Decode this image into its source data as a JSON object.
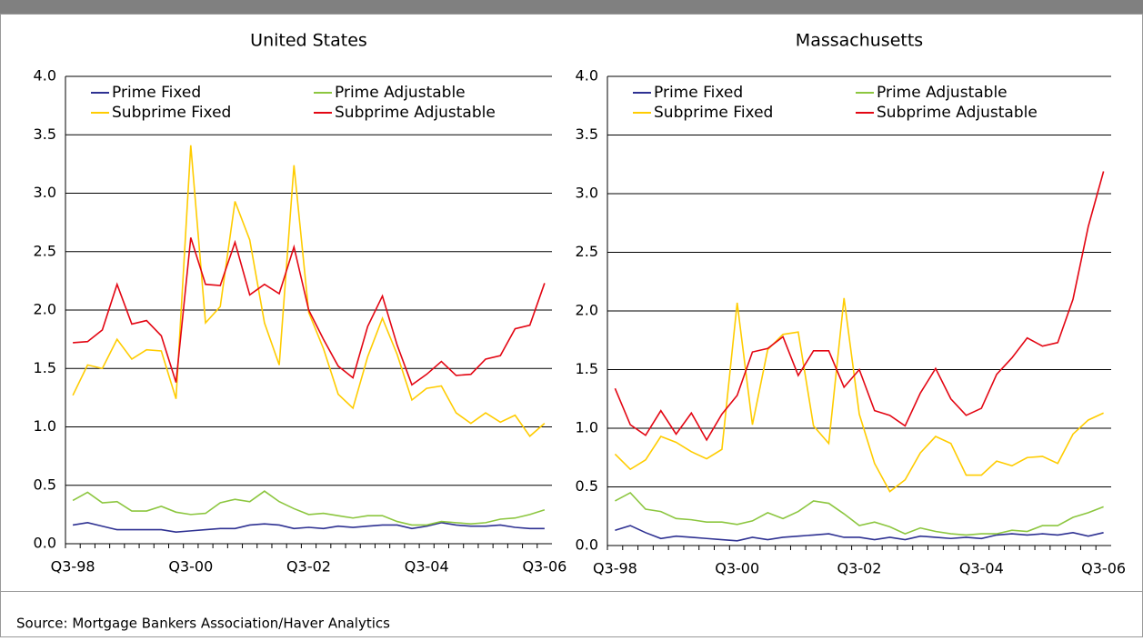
{
  "chart_data": [
    {
      "type": "line",
      "title": "United States",
      "categories": [
        "Q3-98",
        null,
        null,
        null,
        null,
        null,
        null,
        null,
        "Q3-00",
        null,
        null,
        null,
        null,
        null,
        null,
        null,
        "Q3-02",
        null,
        null,
        null,
        null,
        null,
        null,
        null,
        "Q3-04",
        null,
        null,
        null,
        null,
        null,
        null,
        null,
        "Q3-06"
      ],
      "ylim": [
        0,
        4
      ],
      "yticks": [
        {
          "value": 0,
          "label": "0.0"
        },
        0.5,
        {
          "value": 1,
          "label": "1.0"
        },
        1.5,
        {
          "value": 2,
          "label": "2.0"
        },
        2.5,
        {
          "value": 3,
          "label": "3.0"
        },
        3.5,
        {
          "value": 4,
          "label": "4.0"
        }
      ],
      "grid": true,
      "legend": "top-left",
      "series": [
        {
          "name": "Prime Fixed",
          "color": "#2e3192",
          "values": [
            0.16,
            0.18,
            0.15,
            0.12,
            0.12,
            0.12,
            0.12,
            0.1,
            0.11,
            0.12,
            0.13,
            0.13,
            0.16,
            0.17,
            0.16,
            0.13,
            0.14,
            0.13,
            0.15,
            0.14,
            0.15,
            0.16,
            0.16,
            0.13,
            0.15,
            0.18,
            0.16,
            0.15,
            0.15,
            0.16,
            0.14,
            0.13,
            0.13
          ]
        },
        {
          "name": "Prime Adjustable",
          "color": "#8cc63f",
          "values": [
            0.37,
            0.44,
            0.35,
            0.36,
            0.28,
            0.28,
            0.32,
            0.27,
            0.25,
            0.26,
            0.35,
            0.38,
            0.36,
            0.45,
            0.36,
            0.3,
            0.25,
            0.26,
            0.24,
            0.22,
            0.24,
            0.24,
            0.19,
            0.16,
            0.16,
            0.19,
            0.18,
            0.17,
            0.18,
            0.21,
            0.22,
            0.25,
            0.29
          ]
        },
        {
          "name": "Subprime Fixed",
          "color": "#ffcc00",
          "values": [
            1.27,
            1.53,
            1.5,
            1.75,
            1.58,
            1.66,
            1.65,
            1.24,
            3.41,
            1.89,
            2.03,
            2.93,
            2.6,
            1.89,
            1.53,
            3.24,
            1.98,
            1.67,
            1.28,
            1.16,
            1.6,
            1.93,
            1.62,
            1.23,
            1.33,
            1.35,
            1.12,
            1.03,
            1.12,
            1.04,
            1.1,
            0.92,
            1.03
          ]
        },
        {
          "name": "Subprime Adjustable",
          "color": "#e30613",
          "values": [
            1.72,
            1.73,
            1.83,
            2.22,
            1.88,
            1.91,
            1.78,
            1.38,
            2.62,
            2.22,
            2.21,
            2.58,
            2.13,
            2.22,
            2.14,
            2.54,
            2.0,
            1.75,
            1.52,
            1.42,
            1.86,
            2.12,
            1.7,
            1.36,
            1.45,
            1.56,
            1.44,
            1.45,
            1.58,
            1.61,
            1.84,
            1.87,
            2.23
          ]
        }
      ]
    },
    {
      "type": "line",
      "title": "Massachusetts",
      "categories": [
        "Q3-98",
        null,
        null,
        null,
        null,
        null,
        null,
        null,
        "Q3-00",
        null,
        null,
        null,
        null,
        null,
        null,
        null,
        "Q3-02",
        null,
        null,
        null,
        null,
        null,
        null,
        null,
        "Q3-04",
        null,
        null,
        null,
        null,
        null,
        null,
        null,
        "Q3-06"
      ],
      "ylim": [
        0,
        4
      ],
      "yticks": [
        {
          "value": 0,
          "label": "0.0"
        },
        0.5,
        {
          "value": 1,
          "label": "1.0"
        },
        1.5,
        {
          "value": 2,
          "label": "2.0"
        },
        2.5,
        {
          "value": 3,
          "label": "3.0"
        },
        3.5,
        {
          "value": 4,
          "label": "4.0"
        }
      ],
      "grid": true,
      "legend": "top-left",
      "series": [
        {
          "name": "Prime Fixed",
          "color": "#2e3192",
          "values": [
            0.13,
            0.17,
            0.11,
            0.06,
            0.08,
            0.07,
            0.06,
            0.05,
            0.04,
            0.07,
            0.05,
            0.07,
            0.08,
            0.09,
            0.1,
            0.07,
            0.07,
            0.05,
            0.07,
            0.05,
            0.08,
            0.07,
            0.06,
            0.07,
            0.06,
            0.09,
            0.1,
            0.09,
            0.1,
            0.09,
            0.11,
            0.08,
            0.11
          ]
        },
        {
          "name": "Prime Adjustable",
          "color": "#8cc63f",
          "values": [
            0.38,
            0.45,
            0.31,
            0.29,
            0.23,
            0.22,
            0.2,
            0.2,
            0.18,
            0.21,
            0.28,
            0.23,
            0.29,
            0.38,
            0.36,
            0.27,
            0.17,
            0.2,
            0.16,
            0.1,
            0.15,
            0.12,
            0.1,
            0.09,
            0.1,
            0.1,
            0.13,
            0.12,
            0.17,
            0.17,
            0.24,
            0.28,
            0.33
          ]
        },
        {
          "name": "Subprime Fixed",
          "color": "#ffcc00",
          "values": [
            0.78,
            0.65,
            0.73,
            0.93,
            0.88,
            0.8,
            0.74,
            0.82,
            2.07,
            1.03,
            1.67,
            1.8,
            1.82,
            1.02,
            0.87,
            2.11,
            1.12,
            0.7,
            0.46,
            0.56,
            0.79,
            0.93,
            0.87,
            0.6,
            0.6,
            0.72,
            0.68,
            0.75,
            0.76,
            0.7,
            0.95,
            1.07,
            1.13
          ]
        },
        {
          "name": "Subprime Adjustable",
          "color": "#e30613",
          "values": [
            1.34,
            1.03,
            0.94,
            1.15,
            0.95,
            1.13,
            0.9,
            1.12,
            1.28,
            1.65,
            1.68,
            1.78,
            1.45,
            1.66,
            1.66,
            1.35,
            1.5,
            1.15,
            1.11,
            1.02,
            1.3,
            1.51,
            1.25,
            1.11,
            1.17,
            1.46,
            1.6,
            1.77,
            1.7,
            1.73,
            2.1,
            2.72,
            3.19
          ]
        }
      ]
    }
  ],
  "source": "Source: Mortgage Bankers Association/Haver Analytics"
}
